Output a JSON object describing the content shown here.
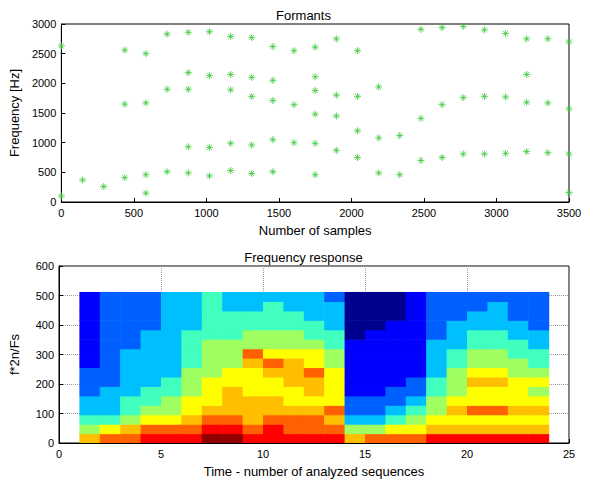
{
  "chart_data": [
    {
      "type": "scatter",
      "title": "Formants",
      "xlabel": "Number of samples",
      "ylabel": "Frequency [Hz]",
      "x": [
        0,
        0,
        146,
        292,
        437,
        437,
        437,
        583,
        583,
        583,
        583,
        729,
        729,
        729,
        875,
        875,
        875,
        875,
        875,
        1021,
        1021,
        1021,
        1021,
        1167,
        1167,
        1167,
        1167,
        1167,
        1312,
        1312,
        1312,
        1312,
        1312,
        1458,
        1458,
        1458,
        1458,
        1458,
        1604,
        1604,
        1604,
        1750,
        1750,
        1750,
        1750,
        1750,
        1750,
        1896,
        1896,
        1896,
        1896,
        2042,
        2042,
        2042,
        2042,
        2188,
        2188,
        2188,
        2333,
        2333,
        2479,
        2479,
        2479,
        2625,
        2625,
        2625,
        2771,
        2771,
        2771,
        2917,
        2917,
        2917,
        3063,
        3063,
        3063,
        3208,
        3208,
        3208,
        3208,
        3354,
        3354,
        3354,
        3500,
        3500,
        3500,
        3500
      ],
      "y": [
        2630,
        100,
        370,
        260,
        2560,
        1650,
        410,
        2500,
        1670,
        460,
        150,
        2830,
        1900,
        510,
        2860,
        2180,
        1900,
        930,
        490,
        2870,
        2130,
        920,
        440,
        2790,
        2150,
        1890,
        990,
        530,
        2770,
        2100,
        1780,
        960,
        480,
        2620,
        2050,
        1710,
        1050,
        510,
        2550,
        1640,
        1000,
        2610,
        2110,
        1880,
        1480,
        990,
        460,
        2750,
        1800,
        1450,
        870,
        2550,
        1780,
        1200,
        750,
        1940,
        1080,
        490,
        1120,
        460,
        2910,
        1410,
        700,
        2940,
        1640,
        750,
        2960,
        1760,
        810,
        2900,
        1780,
        810,
        2840,
        1770,
        820,
        2750,
        2150,
        1680,
        850,
        2750,
        1670,
        830,
        2700,
        1570,
        810,
        160
      ],
      "color": "#3cc83c",
      "marker": "asterisk",
      "xlim": [
        0,
        3500
      ],
      "xticks": [
        0,
        500,
        1000,
        1500,
        2000,
        2500,
        3000,
        3500
      ],
      "ylim": [
        0,
        3000
      ],
      "yticks": [
        0,
        500,
        1000,
        1500,
        2000,
        2500,
        3000
      ],
      "grid": false
    },
    {
      "type": "heatmap",
      "title": "Frequency response",
      "xlabel": "Time - number of analyzed sequences",
      "ylabel": "f*2n/Fs",
      "x_edges": [
        1,
        2,
        3,
        4,
        5,
        6,
        7,
        8,
        9,
        10,
        11,
        12,
        13,
        14,
        15,
        16,
        17,
        18,
        19,
        20,
        21,
        22,
        23,
        24
      ],
      "y_edges": [
        0,
        32,
        64,
        96,
        128,
        160,
        192,
        224,
        256,
        288,
        320,
        352,
        384,
        416,
        448,
        480,
        512
      ],
      "z": [
        [
          7,
          5,
          4,
          3,
          3,
          2,
          2,
          2,
          1,
          1,
          1,
          1,
          1,
          1,
          1,
          1
        ],
        [
          8,
          6,
          4,
          3,
          3,
          3,
          2,
          2,
          2,
          2,
          2,
          2,
          2,
          2,
          2,
          2
        ],
        [
          8,
          7,
          5,
          4,
          4,
          3,
          3,
          3,
          3,
          3,
          2,
          2,
          2,
          2,
          2,
          2
        ],
        [
          9,
          8,
          6,
          5,
          4,
          4,
          3,
          3,
          3,
          3,
          3,
          3,
          2,
          2,
          2,
          2
        ],
        [
          9,
          8,
          6,
          5,
          5,
          4,
          4,
          3,
          3,
          3,
          3,
          3,
          3,
          3,
          3,
          3
        ],
        [
          9,
          8,
          7,
          6,
          6,
          5,
          5,
          5,
          4,
          4,
          4,
          4,
          3,
          3,
          3,
          3
        ],
        [
          10,
          9,
          8,
          7,
          6,
          6,
          6,
          5,
          5,
          5,
          5,
          4,
          4,
          4,
          4,
          4
        ],
        [
          10,
          9,
          8,
          7,
          7,
          7,
          6,
          6,
          5,
          5,
          5,
          4,
          4,
          4,
          3,
          3
        ],
        [
          9,
          8,
          7,
          7,
          7,
          6,
          6,
          6,
          7,
          8,
          5,
          5,
          4,
          4,
          3,
          3
        ],
        [
          9,
          9,
          8,
          7,
          7,
          6,
          6,
          7,
          8,
          6,
          5,
          5,
          4,
          4,
          4,
          3
        ],
        [
          9,
          8,
          8,
          7,
          6,
          6,
          7,
          7,
          7,
          6,
          5,
          5,
          4,
          4,
          3,
          3
        ],
        [
          9,
          8,
          8,
          7,
          6,
          7,
          7,
          8,
          6,
          6,
          5,
          4,
          4,
          3,
          3,
          3
        ],
        [
          9,
          8,
          7,
          8,
          6,
          6,
          6,
          6,
          5,
          5,
          4,
          4,
          3,
          3,
          3,
          2
        ],
        [
          7,
          5,
          3,
          2,
          2,
          1,
          1,
          1,
          1,
          1,
          1,
          0,
          0,
          0,
          0,
          0
        ],
        [
          8,
          5,
          3,
          2,
          2,
          1,
          1,
          1,
          1,
          1,
          1,
          1,
          0,
          0,
          0,
          0
        ],
        [
          8,
          6,
          4,
          3,
          2,
          2,
          1,
          1,
          1,
          1,
          1,
          1,
          1,
          0,
          0,
          0
        ],
        [
          8,
          6,
          5,
          4,
          3,
          2,
          2,
          1,
          1,
          1,
          1,
          1,
          1,
          1,
          1,
          1
        ],
        [
          9,
          7,
          6,
          5,
          5,
          4,
          4,
          3,
          3,
          3,
          3,
          2,
          2,
          2,
          2,
          2
        ],
        [
          9,
          7,
          6,
          7,
          6,
          5,
          5,
          5,
          4,
          4,
          3,
          3,
          3,
          2,
          2,
          2
        ],
        [
          9,
          7,
          6,
          8,
          6,
          6,
          7,
          6,
          5,
          5,
          4,
          4,
          3,
          3,
          2,
          2
        ],
        [
          9,
          7,
          6,
          8,
          6,
          6,
          7,
          6,
          5,
          5,
          4,
          4,
          3,
          3,
          3,
          2
        ],
        [
          9,
          7,
          6,
          7,
          6,
          6,
          6,
          5,
          5,
          4,
          4,
          3,
          3,
          2,
          2,
          2
        ],
        [
          9,
          7,
          6,
          7,
          6,
          5,
          6,
          5,
          4,
          4,
          3,
          3,
          2,
          2,
          2,
          2
        ]
      ],
      "color_range": [
        0,
        10
      ],
      "xlim": [
        0,
        25
      ],
      "xticks": [
        0,
        5,
        10,
        15,
        20,
        25
      ],
      "ylim": [
        0,
        600
      ],
      "yticks": [
        0,
        100,
        200,
        300,
        400,
        500,
        600
      ],
      "grid": true
    }
  ]
}
